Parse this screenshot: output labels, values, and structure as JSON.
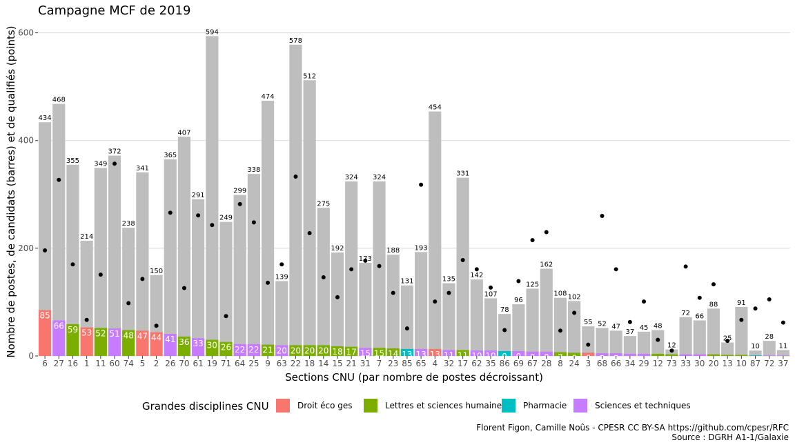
{
  "chart_data": {
    "type": "bar",
    "title": "Campagne MCF de 2019",
    "xlabel": "Sections CNU (par nombre de postes décroissant)",
    "ylabel": "Nombre de postes, de candidats (barres) et de qualifiés (points)",
    "ylim": [
      0,
      620
    ],
    "yticks": [
      0,
      200,
      400,
      600
    ],
    "grid": true,
    "legend": {
      "title": "Grandes disciplines CNU",
      "placement": "bottom",
      "entries": [
        {
          "key": "droit",
          "label": "Droit éco ges",
          "color": "#F8766D"
        },
        {
          "key": "lettres",
          "label": "Lettres et sciences humaines",
          "color": "#7CAE00"
        },
        {
          "key": "pharmacie",
          "label": "Pharmacie",
          "color": "#00BFC4"
        },
        {
          "key": "sciences",
          "label": "Sciences et techniques",
          "color": "#C77CFF"
        }
      ]
    },
    "candidats_color": "#bebebe",
    "caption": [
      "Florent Figon, Camille Noûs - CPESR CC BY-SA https://github.com/cpesr/RFC",
      "Source : DGRH A1-1/Galaxie"
    ],
    "sections": [
      {
        "section": "6",
        "discipline": "droit",
        "postes": 85,
        "candidats": 434,
        "qualifies": 196
      },
      {
        "section": "27",
        "discipline": "sciences",
        "postes": 66,
        "candidats": 468,
        "qualifies": 327
      },
      {
        "section": "16",
        "discipline": "lettres",
        "postes": 59,
        "candidats": 355,
        "qualifies": 170
      },
      {
        "section": "1",
        "discipline": "droit",
        "postes": 53,
        "candidats": 214,
        "qualifies": 67
      },
      {
        "section": "11",
        "discipline": "lettres",
        "postes": 52,
        "candidats": 349,
        "qualifies": 151
      },
      {
        "section": "60",
        "discipline": "sciences",
        "postes": 51,
        "candidats": 372,
        "qualifies": 357
      },
      {
        "section": "74",
        "discipline": "lettres",
        "postes": 48,
        "candidats": 238,
        "qualifies": 98
      },
      {
        "section": "5",
        "discipline": "droit",
        "postes": 47,
        "candidats": 341,
        "qualifies": 143
      },
      {
        "section": "2",
        "discipline": "droit",
        "postes": 44,
        "candidats": 150,
        "qualifies": 56
      },
      {
        "section": "26",
        "discipline": "sciences",
        "postes": 41,
        "candidats": 365,
        "qualifies": 266
      },
      {
        "section": "70",
        "discipline": "lettres",
        "postes": 36,
        "candidats": 407,
        "qualifies": 126
      },
      {
        "section": "61",
        "discipline": "sciences",
        "postes": 33,
        "candidats": 291,
        "qualifies": 261
      },
      {
        "section": "19",
        "discipline": "lettres",
        "postes": 30,
        "candidats": 594,
        "qualifies": 243
      },
      {
        "section": "71",
        "discipline": "lettres",
        "postes": 26,
        "candidats": 249,
        "qualifies": 74
      },
      {
        "section": "64",
        "discipline": "sciences",
        "postes": 22,
        "candidats": 299,
        "qualifies": 282
      },
      {
        "section": "25",
        "discipline": "sciences",
        "postes": 22,
        "candidats": 338,
        "qualifies": 248
      },
      {
        "section": "9",
        "discipline": "lettres",
        "postes": 21,
        "candidats": 474,
        "qualifies": 136
      },
      {
        "section": "63",
        "discipline": "sciences",
        "postes": 20,
        "candidats": 139,
        "qualifies": 170
      },
      {
        "section": "22",
        "discipline": "lettres",
        "postes": 20,
        "candidats": 578,
        "qualifies": 333
      },
      {
        "section": "18",
        "discipline": "lettres",
        "postes": 20,
        "candidats": 512,
        "qualifies": 228
      },
      {
        "section": "14",
        "discipline": "lettres",
        "postes": 20,
        "candidats": 275,
        "qualifies": 146
      },
      {
        "section": "15",
        "discipline": "lettres",
        "postes": 18,
        "candidats": 192,
        "qualifies": 109
      },
      {
        "section": "21",
        "discipline": "lettres",
        "postes": 17,
        "candidats": 324,
        "qualifies": 161
      },
      {
        "section": "31",
        "discipline": "sciences",
        "postes": 15,
        "candidats": 173,
        "qualifies": 177
      },
      {
        "section": "7",
        "discipline": "lettres",
        "postes": 15,
        "candidats": 324,
        "qualifies": 167
      },
      {
        "section": "23",
        "discipline": "lettres",
        "postes": 14,
        "candidats": 188,
        "qualifies": 117
      },
      {
        "section": "85",
        "discipline": "pharmacie",
        "postes": 13,
        "candidats": 131,
        "qualifies": 51
      },
      {
        "section": "65",
        "discipline": "sciences",
        "postes": 13,
        "candidats": 193,
        "qualifies": 318
      },
      {
        "section": "4",
        "discipline": "droit",
        "postes": 13,
        "candidats": 454,
        "qualifies": 101
      },
      {
        "section": "32",
        "discipline": "sciences",
        "postes": 11,
        "candidats": 135,
        "qualifies": 117
      },
      {
        "section": "17",
        "discipline": "lettres",
        "postes": 11,
        "candidats": 331,
        "qualifies": 178
      },
      {
        "section": "62",
        "discipline": "sciences",
        "postes": 10,
        "candidats": 142,
        "qualifies": 161
      },
      {
        "section": "35",
        "discipline": "sciences",
        "postes": 10,
        "candidats": 107,
        "qualifies": 127
      },
      {
        "section": "86",
        "discipline": "pharmacie",
        "postes": 9,
        "candidats": 78,
        "qualifies": 48
      },
      {
        "section": "69",
        "discipline": "sciences",
        "postes": 9,
        "candidats": 96,
        "qualifies": 139
      },
      {
        "section": "67",
        "discipline": "sciences",
        "postes": 8,
        "candidats": 125,
        "qualifies": 215
      },
      {
        "section": "28",
        "discipline": "sciences",
        "postes": 8,
        "candidats": 162,
        "qualifies": 230
      },
      {
        "section": "8",
        "discipline": "lettres",
        "postes": 7,
        "candidats": 108,
        "qualifies": 47
      },
      {
        "section": "24",
        "discipline": "lettres",
        "postes": 6,
        "candidats": 102,
        "qualifies": 80
      },
      {
        "section": "3",
        "discipline": "droit",
        "postes": 6,
        "candidats": 55,
        "qualifies": 21
      },
      {
        "section": "68",
        "discipline": "sciences",
        "postes": 5,
        "candidats": 52,
        "qualifies": 260
      },
      {
        "section": "66",
        "discipline": "sciences",
        "postes": 5,
        "candidats": 47,
        "qualifies": 161
      },
      {
        "section": "34",
        "discipline": "sciences",
        "postes": 4,
        "candidats": 37,
        "qualifies": 63
      },
      {
        "section": "29",
        "discipline": "sciences",
        "postes": 4,
        "candidats": 45,
        "qualifies": 101
      },
      {
        "section": "12",
        "discipline": "lettres",
        "postes": 4,
        "candidats": 48,
        "qualifies": 30
      },
      {
        "section": "73",
        "discipline": "lettres",
        "postes": 3,
        "candidats": 12,
        "qualifies": 10
      },
      {
        "section": "33",
        "discipline": "sciences",
        "postes": 3,
        "candidats": 72,
        "qualifies": 166
      },
      {
        "section": "30",
        "discipline": "sciences",
        "postes": 3,
        "candidats": 66,
        "qualifies": 108
      },
      {
        "section": "20",
        "discipline": "lettres",
        "postes": 3,
        "candidats": 88,
        "qualifies": 133
      },
      {
        "section": "13",
        "discipline": "lettres",
        "postes": 2,
        "candidats": 25,
        "qualifies": 28
      },
      {
        "section": "10",
        "discipline": "lettres",
        "postes": 2,
        "candidats": 91,
        "qualifies": 67
      },
      {
        "section": "87",
        "discipline": "pharmacie",
        "postes": 1,
        "candidats": 10,
        "qualifies": 88
      },
      {
        "section": "72",
        "discipline": "sciences",
        "postes": 1,
        "candidats": 28,
        "qualifies": 105
      },
      {
        "section": "37",
        "discipline": "sciences",
        "postes": 1,
        "candidats": 11,
        "qualifies": 62
      }
    ]
  }
}
